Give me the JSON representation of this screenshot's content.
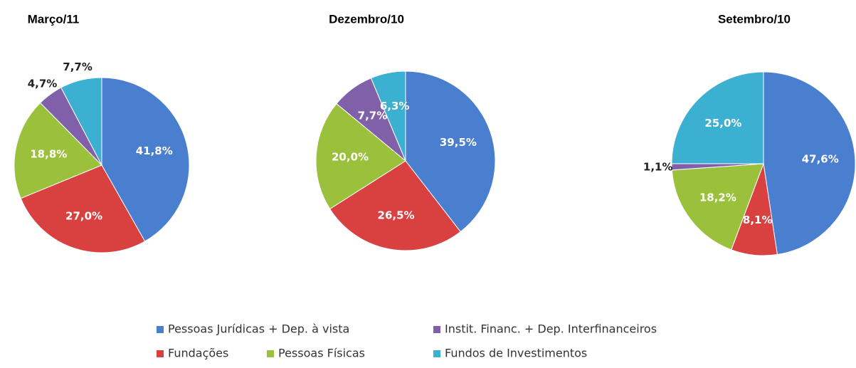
{
  "legend": {
    "labels": [
      "Pessoas Jurídicas + Dep. à vista",
      "Fundações",
      "Pessoas Físicas",
      "Instit. Financ. + Dep. Interfinanceiros",
      "Fundos de Investimentos"
    ],
    "colors": [
      "#4a7fcf",
      "#d94040",
      "#9bc13c",
      "#8060a8",
      "#3bb0d0"
    ]
  },
  "chart_data": [
    {
      "type": "pie",
      "title": "Março/11",
      "values": [
        41.8,
        27.0,
        18.8,
        4.7,
        7.7
      ],
      "value_labels": [
        "41,8%",
        "27,0%",
        "18,8%",
        "4,7%",
        "7,7%"
      ]
    },
    {
      "type": "pie",
      "title": "Dezembro/10",
      "values": [
        39.5,
        26.5,
        20.0,
        7.7,
        6.3
      ],
      "value_labels": [
        "39,5%",
        "26,5%",
        "20,0%",
        "7,7%",
        "6,3%"
      ]
    },
    {
      "type": "pie",
      "title": "Setembro/10",
      "values": [
        47.6,
        8.1,
        18.2,
        1.1,
        25.0
      ],
      "value_labels": [
        "47,6%",
        "8,1%",
        "18,2%",
        "1,1%",
        "25,0%"
      ]
    }
  ]
}
